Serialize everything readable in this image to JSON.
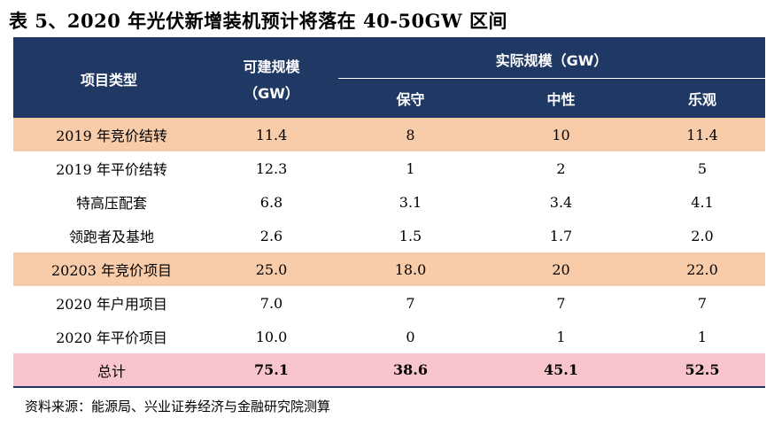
{
  "title": "表 5、2020 年光伏新增装机预计将落在 40-50GW 区间",
  "header": {
    "col_item": "项目类型",
    "col_buildable_line1": "可建规模",
    "col_buildable_line2": "（GW）",
    "col_actual": "实际规模（GW）",
    "sub_conservative": "保守",
    "sub_neutral": "中性",
    "sub_optimistic": "乐观"
  },
  "rows": [
    {
      "label": "2019 年竞价结转",
      "buildable": "11.4",
      "conservative": "8",
      "neutral": "10",
      "optimistic": "11.4",
      "highlight": "orange"
    },
    {
      "label": "2019 年平价结转",
      "buildable": "12.3",
      "conservative": "1",
      "neutral": "2",
      "optimistic": "5",
      "highlight": ""
    },
    {
      "label": "特高压配套",
      "buildable": "6.8",
      "conservative": "3.1",
      "neutral": "3.4",
      "optimistic": "4.1",
      "highlight": ""
    },
    {
      "label": "领跑者及基地",
      "buildable": "2.6",
      "conservative": "1.5",
      "neutral": "1.7",
      "optimistic": "2.0",
      "highlight": ""
    },
    {
      "label": "20203 年竞价项目",
      "buildable": "25.0",
      "conservative": "18.0",
      "neutral": "20",
      "optimistic": "22.0",
      "highlight": "orange"
    },
    {
      "label": "2020 年户用项目",
      "buildable": "7.0",
      "conservative": "7",
      "neutral": "7",
      "optimistic": "7",
      "highlight": ""
    },
    {
      "label": "2020 年平价项目",
      "buildable": "10.0",
      "conservative": "0",
      "neutral": "1",
      "optimistic": "1",
      "highlight": ""
    },
    {
      "label": "总计",
      "buildable": "75.1",
      "conservative": "38.6",
      "neutral": "45.1",
      "optimistic": "52.5",
      "highlight": "pink"
    }
  ],
  "source": "资料来源：能源局、兴业证券经济与金融研究院测算",
  "colors": {
    "header_bg": "#1f3864",
    "orange_row": "#f8cba9",
    "pink_row": "#f9c5cc"
  }
}
